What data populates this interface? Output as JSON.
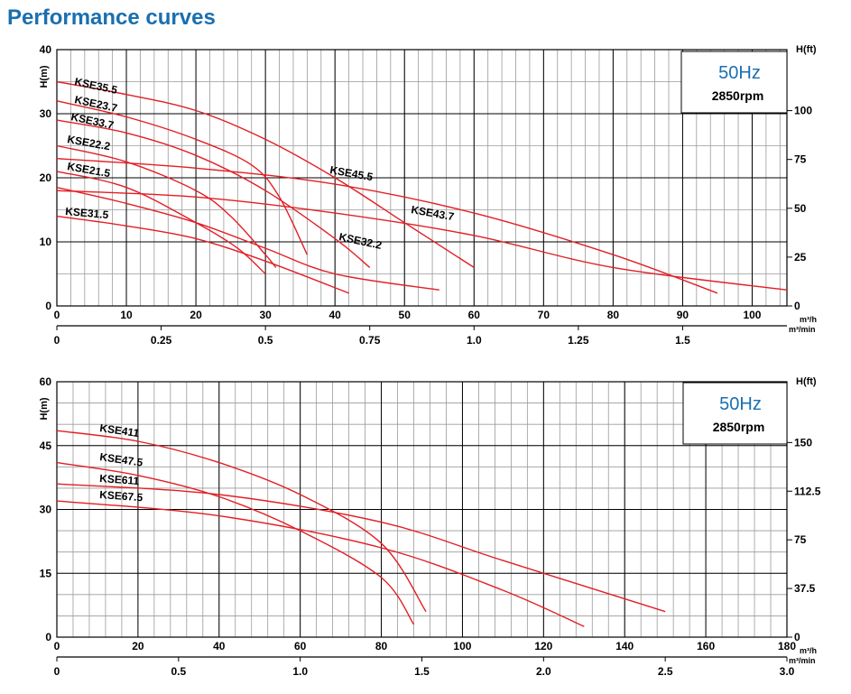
{
  "page_title": "Performance curves",
  "colors": {
    "curve": "#e31e24",
    "title": "#1a6fb0",
    "grid_major": "#000000",
    "grid_minor": "#9a9a9a"
  },
  "chart_data": [
    {
      "type": "line",
      "frequency": "50Hz",
      "speed": "2850rpm",
      "ylabel": "H(m)",
      "ylabel_right": "H(ft)",
      "xunit_top": "m³/h",
      "xunit_bottom": "m³/min",
      "xlim": [
        0,
        105
      ],
      "ylim": [
        0,
        40
      ],
      "xticks": [
        "0",
        "10",
        "20",
        "30",
        "40",
        "50",
        "60",
        "70",
        "80",
        "90",
        "100"
      ],
      "yticks": [
        "0",
        "10",
        "20",
        "30",
        "40"
      ],
      "x2ticks": [
        "0",
        "0.25",
        "0.5",
        "0.75",
        "1.0",
        "1.25",
        "1.5"
      ],
      "y2ticks": [
        "0",
        "25",
        "50",
        "75",
        "100"
      ],
      "series": [
        {
          "name": "KSE35.5",
          "points": [
            [
              0,
              35
            ],
            [
              10,
              33
            ],
            [
              20,
              30.5
            ],
            [
              30,
              26
            ],
            [
              40,
              20
            ],
            [
              50,
              13
            ],
            [
              60,
              6
            ]
          ]
        },
        {
          "name": "KSE23.7",
          "points": [
            [
              0,
              32
            ],
            [
              10,
              29.5
            ],
            [
              20,
              26
            ],
            [
              28,
              22
            ],
            [
              32,
              17
            ],
            [
              36,
              8
            ]
          ]
        },
        {
          "name": "KSE33.7",
          "points": [
            [
              0,
              29
            ],
            [
              10,
              27
            ],
            [
              20,
              23.5
            ],
            [
              30,
              18
            ],
            [
              40,
              10.5
            ],
            [
              45,
              6
            ]
          ]
        },
        {
          "name": "KSE22.2",
          "points": [
            [
              0,
              25
            ],
            [
              10,
              22.5
            ],
            [
              20,
              18
            ],
            [
              25,
              14
            ],
            [
              30,
              8
            ],
            [
              31.5,
              6
            ]
          ]
        },
        {
          "name": "KSE21.5",
          "points": [
            [
              0,
              21
            ],
            [
              10,
              18.5
            ],
            [
              20,
              13
            ],
            [
              26,
              9
            ],
            [
              30,
              5
            ]
          ]
        },
        {
          "name": "KSE45.5",
          "points": [
            [
              0,
              23
            ],
            [
              20,
              21.5
            ],
            [
              40,
              19
            ],
            [
              60,
              14.5
            ],
            [
              80,
              8
            ],
            [
              95,
              2
            ]
          ]
        },
        {
          "name": "KSE43.7",
          "points": [
            [
              0,
              18
            ],
            [
              20,
              17
            ],
            [
              40,
              14.5
            ],
            [
              60,
              11
            ],
            [
              80,
              6
            ],
            [
              105,
              2.5
            ]
          ]
        },
        {
          "name": "KSE32.2",
          "points": [
            [
              0,
              18.5
            ],
            [
              10,
              16
            ],
            [
              20,
              13
            ],
            [
              30,
              9
            ],
            [
              40,
              5
            ],
            [
              55,
              2.5
            ]
          ]
        },
        {
          "name": "KSE31.5",
          "points": [
            [
              0,
              14
            ],
            [
              10,
              12.5
            ],
            [
              20,
              10.5
            ],
            [
              30,
              7
            ],
            [
              42,
              2
            ]
          ]
        }
      ]
    },
    {
      "type": "line",
      "frequency": "50Hz",
      "speed": "2850rpm",
      "ylabel": "H(m)",
      "ylabel_right": "H(ft)",
      "xunit_top": "m³/h",
      "xunit_bottom": "m³/min",
      "xlim": [
        0,
        180
      ],
      "ylim": [
        0,
        60
      ],
      "xticks": [
        "0",
        "20",
        "40",
        "60",
        "80",
        "100",
        "120",
        "140",
        "160",
        "180"
      ],
      "yticks": [
        "0",
        "15",
        "30",
        "45",
        "60"
      ],
      "x2ticks": [
        "0",
        "0.5",
        "1.0",
        "1.5",
        "2.0",
        "2.5",
        "3.0"
      ],
      "y2ticks": [
        "0",
        "37.5",
        "75",
        "112.5",
        "150"
      ],
      "series": [
        {
          "name": "KSE411",
          "points": [
            [
              0,
              48.5
            ],
            [
              20,
              46
            ],
            [
              40,
              41
            ],
            [
              60,
              33.5
            ],
            [
              80,
              22
            ],
            [
              91,
              6
            ]
          ]
        },
        {
          "name": "KSE47.5",
          "points": [
            [
              0,
              41
            ],
            [
              20,
              38
            ],
            [
              40,
              33
            ],
            [
              60,
              25
            ],
            [
              80,
              14
            ],
            [
              88,
              3
            ]
          ]
        },
        {
          "name": "KSE611",
          "points": [
            [
              0,
              36
            ],
            [
              40,
              33.5
            ],
            [
              80,
              27
            ],
            [
              110,
              18
            ],
            [
              150,
              6
            ]
          ]
        },
        {
          "name": "KSE67.5",
          "points": [
            [
              0,
              32
            ],
            [
              40,
              28.5
            ],
            [
              80,
              21
            ],
            [
              110,
              11
            ],
            [
              130,
              2.5
            ]
          ]
        }
      ]
    }
  ]
}
